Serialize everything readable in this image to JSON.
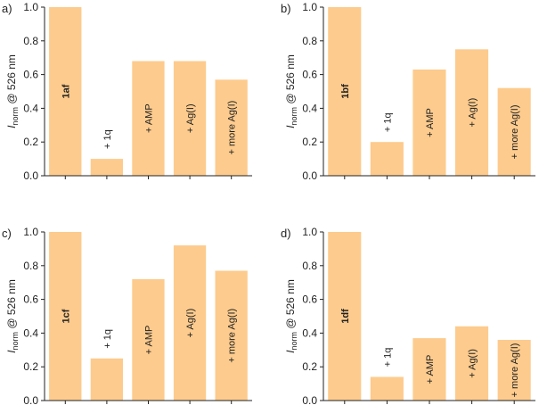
{
  "style": {
    "bar_color": "#FDCB8D",
    "axis_color": "#222222"
  },
  "chart_data": [
    {
      "type": "bar",
      "panel": "a)",
      "ylabel": {
        "italic": "I",
        "sub": "norm",
        "rest": " @ 526 nm"
      },
      "ylim": [
        0,
        1.0
      ],
      "yticks": [
        "0.0",
        "0.2",
        "0.4",
        "0.6",
        "0.8",
        "1.0"
      ],
      "categories": [
        "1af",
        "+ 1q",
        "+ AMP",
        "+ Ag(I)",
        "+ more Ag(I)"
      ],
      "values": [
        1.0,
        0.1,
        0.68,
        0.68,
        0.57
      ]
    },
    {
      "type": "bar",
      "panel": "b)",
      "ylabel": {
        "italic": "I",
        "sub": "norm",
        "rest": " @ 526 nm"
      },
      "ylim": [
        0,
        1.0
      ],
      "yticks": [
        "0.0",
        "0.2",
        "0.4",
        "0.6",
        "0.8",
        "1.0"
      ],
      "categories": [
        "1bf",
        "+ 1q",
        "+ AMP",
        "+ Ag(I)",
        "+ more Ag(I)"
      ],
      "values": [
        1.0,
        0.2,
        0.63,
        0.75,
        0.52
      ]
    },
    {
      "type": "bar",
      "panel": "c)",
      "ylabel": {
        "italic": "I",
        "sub": "norm",
        "rest": " @ 526 nm"
      },
      "ylim": [
        0,
        1.0
      ],
      "yticks": [
        "0.0",
        "0.2",
        "0.4",
        "0.6",
        "0.8",
        "1.0"
      ],
      "categories": [
        "1cf",
        "+ 1q",
        "+ AMP",
        "+ Ag(I)",
        "+ more Ag(I)"
      ],
      "values": [
        1.0,
        0.25,
        0.72,
        0.92,
        0.77
      ]
    },
    {
      "type": "bar",
      "panel": "d)",
      "ylabel": {
        "italic": "I",
        "sub": "norm",
        "rest": " @ 526 nm"
      },
      "ylim": [
        0,
        1.0
      ],
      "yticks": [
        "0.0",
        "0.2",
        "0.4",
        "0.6",
        "0.8",
        "1.0"
      ],
      "categories": [
        "1df",
        "+ 1q",
        "+ AMP",
        "+ Ag(I)",
        "+ more Ag(I)"
      ],
      "values": [
        1.0,
        0.14,
        0.37,
        0.44,
        0.36
      ]
    }
  ]
}
